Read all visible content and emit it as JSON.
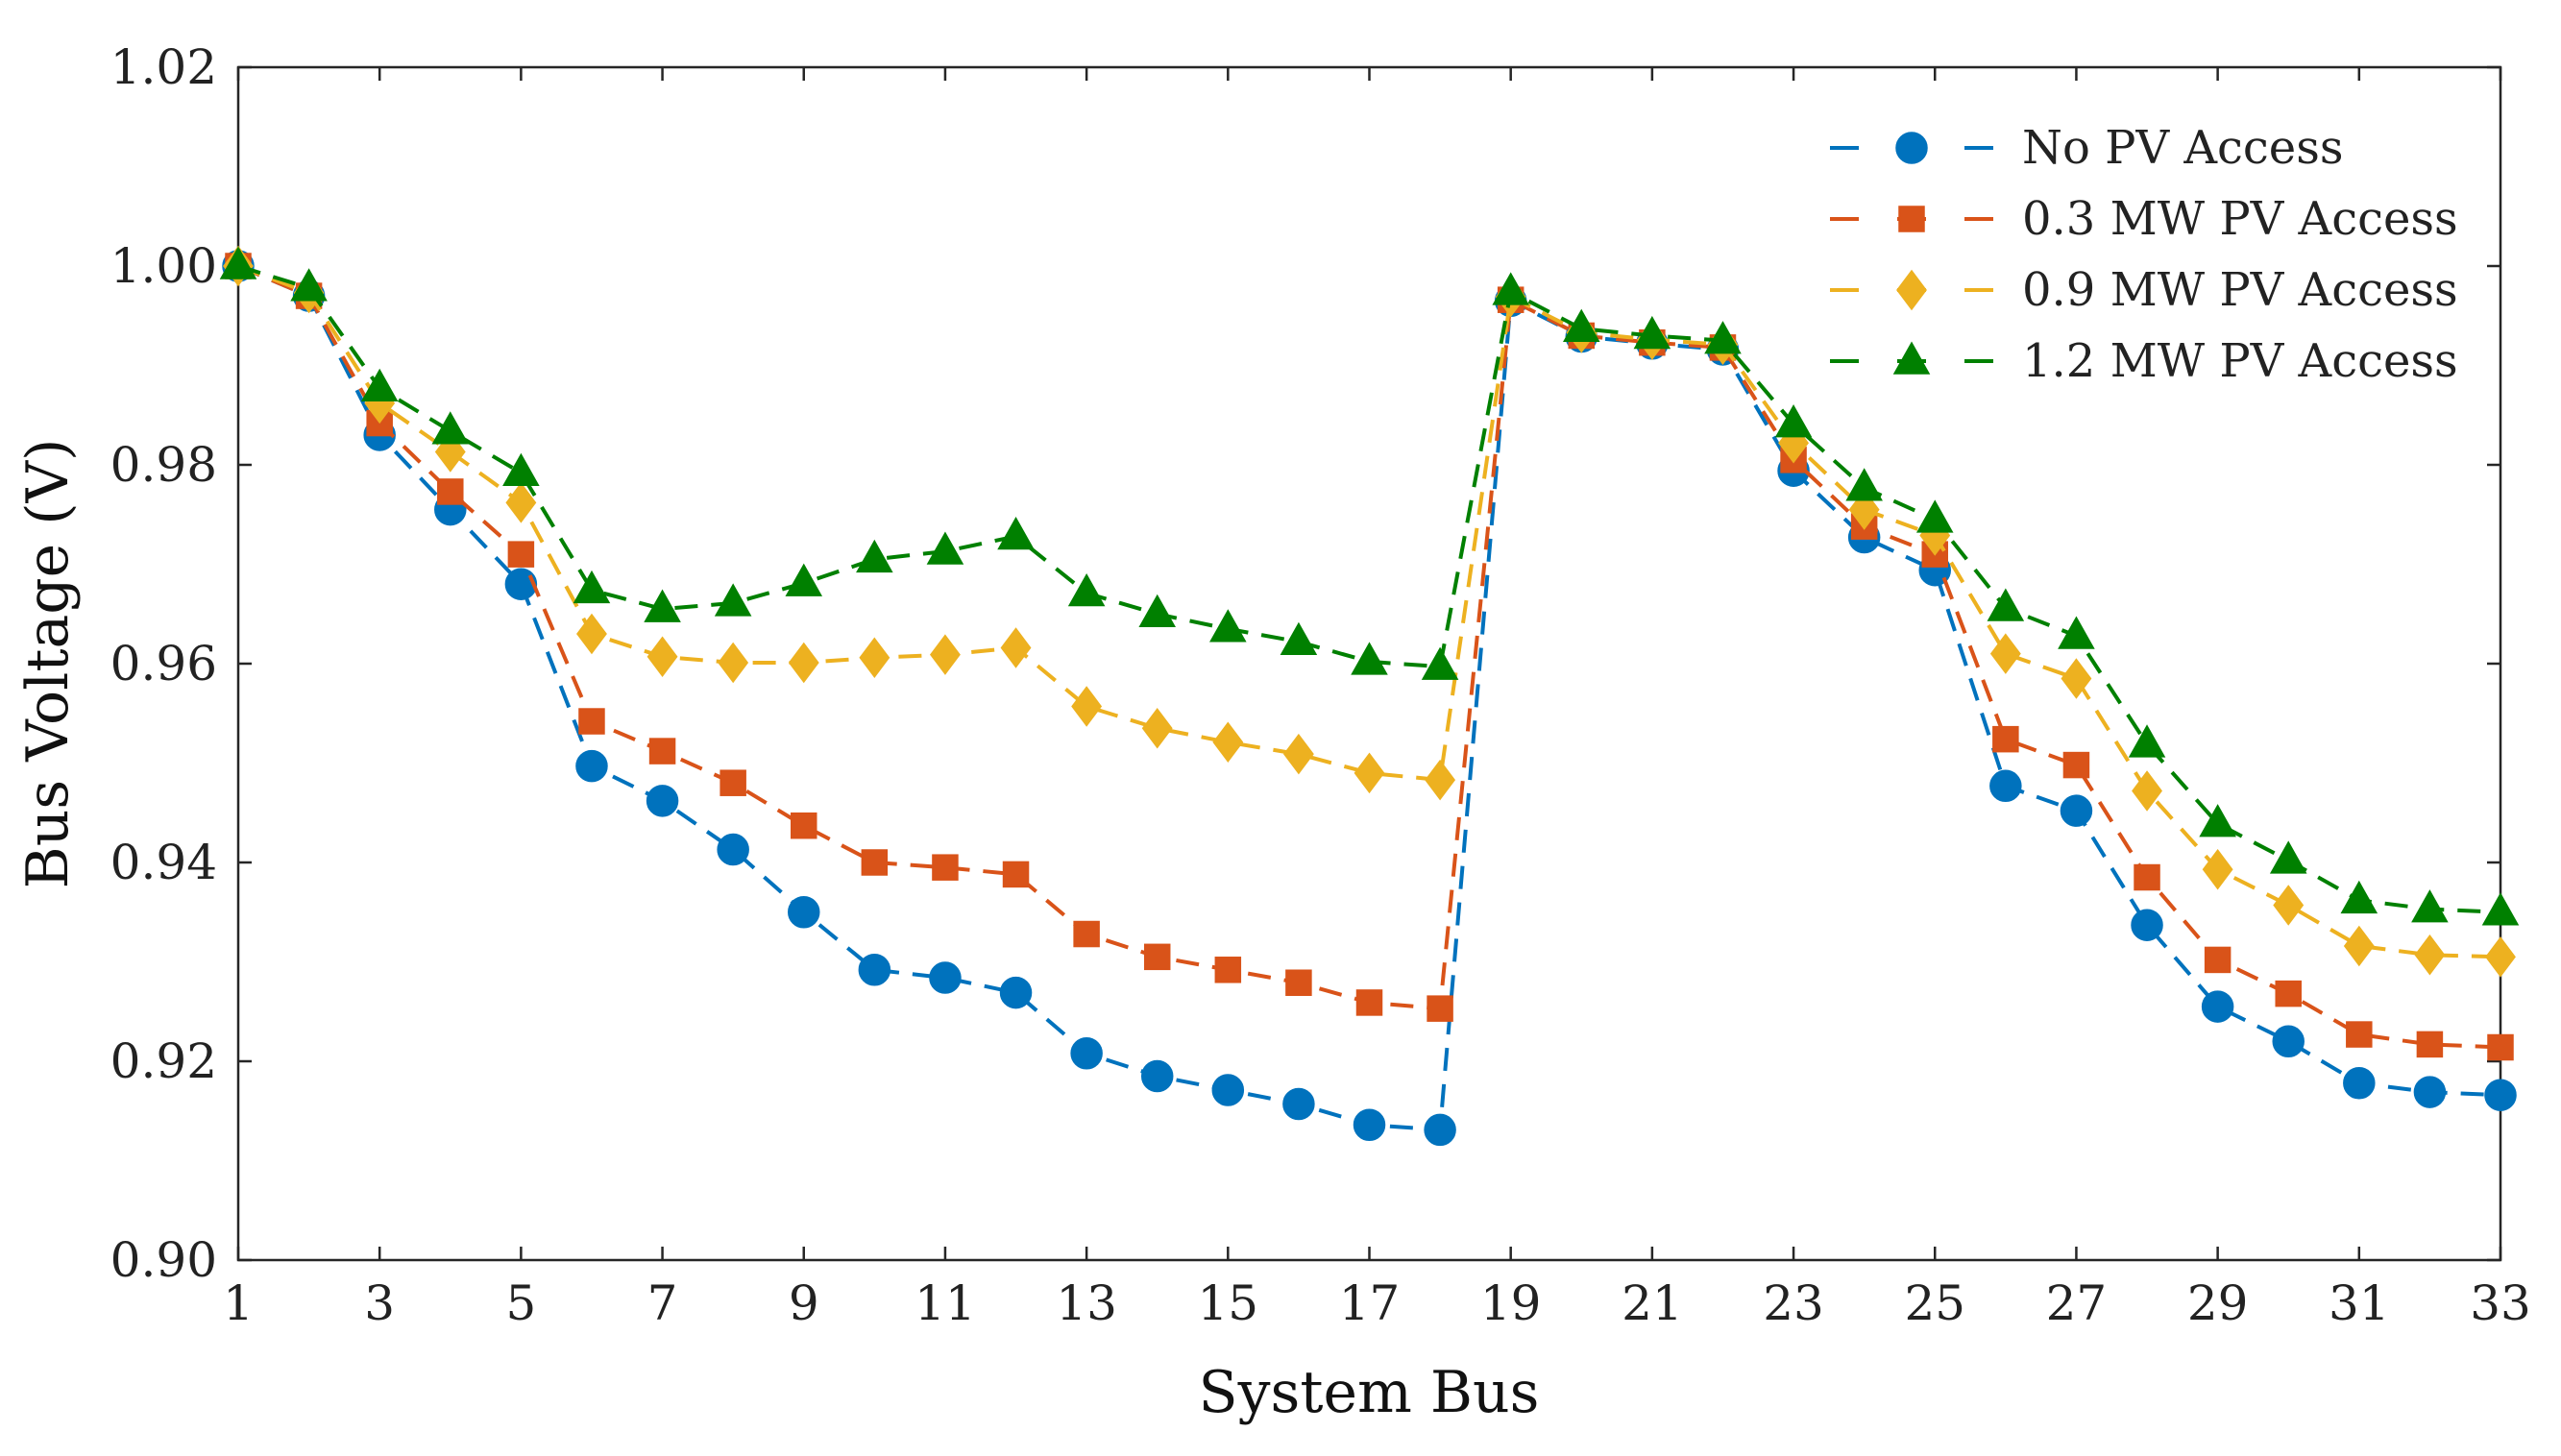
{
  "chart_data": {
    "type": "line",
    "xlabel": "System Bus",
    "ylabel": "Bus Voltage (V)",
    "xlim": [
      1,
      33
    ],
    "ylim": [
      0.9,
      1.02
    ],
    "xticks": [
      "1",
      "3",
      "5",
      "7",
      "9",
      "11",
      "13",
      "15",
      "17",
      "19",
      "21",
      "23",
      "25",
      "27",
      "29",
      "31",
      "33"
    ],
    "yticks": [
      "0.90",
      "0.92",
      "0.94",
      "0.96",
      "0.98",
      "1.00",
      "1.02"
    ],
    "x": [
      1,
      2,
      3,
      4,
      5,
      6,
      7,
      8,
      9,
      10,
      11,
      12,
      13,
      14,
      15,
      16,
      17,
      18,
      19,
      20,
      21,
      22,
      23,
      24,
      25,
      26,
      27,
      28,
      29,
      30,
      31,
      32,
      33
    ],
    "legend_position": "top-right",
    "series": [
      {
        "name": "No PV Access",
        "color": "#0072BD",
        "marker": "circle",
        "values": [
          1.0,
          0.997,
          0.983,
          0.9755,
          0.968,
          0.9497,
          0.9462,
          0.9413,
          0.935,
          0.9292,
          0.9284,
          0.9269,
          0.9208,
          0.9185,
          0.9171,
          0.9157,
          0.9136,
          0.9131,
          0.9965,
          0.9929,
          0.9922,
          0.9916,
          0.9794,
          0.9727,
          0.9694,
          0.9477,
          0.9452,
          0.9337,
          0.9255,
          0.922,
          0.9178,
          0.9169,
          0.9166
        ]
      },
      {
        "name": "0.3 MW PV Access",
        "color": "#D95319",
        "marker": "square",
        "values": [
          1.0,
          0.997,
          0.9842,
          0.9773,
          0.971,
          0.9542,
          0.9512,
          0.948,
          0.9437,
          0.94,
          0.9395,
          0.9388,
          0.9328,
          0.9305,
          0.9292,
          0.9279,
          0.9259,
          0.9253,
          0.9966,
          0.993,
          0.9923,
          0.9918,
          0.9805,
          0.9738,
          0.971,
          0.9524,
          0.9498,
          0.9385,
          0.9302,
          0.9268,
          0.9227,
          0.9217,
          0.9214
        ]
      },
      {
        "name": "0.9 MW PV Access",
        "color": "#EDB120",
        "marker": "diamond",
        "values": [
          1.0,
          0.9973,
          0.9862,
          0.9813,
          0.9762,
          0.963,
          0.9607,
          0.9601,
          0.9601,
          0.9606,
          0.9609,
          0.9616,
          0.9557,
          0.9535,
          0.9521,
          0.9509,
          0.949,
          0.9483,
          0.9969,
          0.9933,
          0.9926,
          0.9921,
          0.9822,
          0.9755,
          0.9729,
          0.961,
          0.9585,
          0.9472,
          0.9393,
          0.9357,
          0.9316,
          0.9307,
          0.9305
        ]
      },
      {
        "name": "1.2 MW PV Access",
        "color": "#008000",
        "marker": "triangle",
        "values": [
          1.0,
          0.9978,
          0.9877,
          0.9834,
          0.9792,
          0.9674,
          0.9655,
          0.9661,
          0.9681,
          0.9705,
          0.9713,
          0.9728,
          0.9671,
          0.965,
          0.9635,
          0.9622,
          0.9602,
          0.9597,
          0.9974,
          0.9937,
          0.993,
          0.9925,
          0.9841,
          0.9777,
          0.9745,
          0.9656,
          0.9628,
          0.9519,
          0.9439,
          0.9402,
          0.9362,
          0.9353,
          0.935
        ]
      }
    ]
  }
}
